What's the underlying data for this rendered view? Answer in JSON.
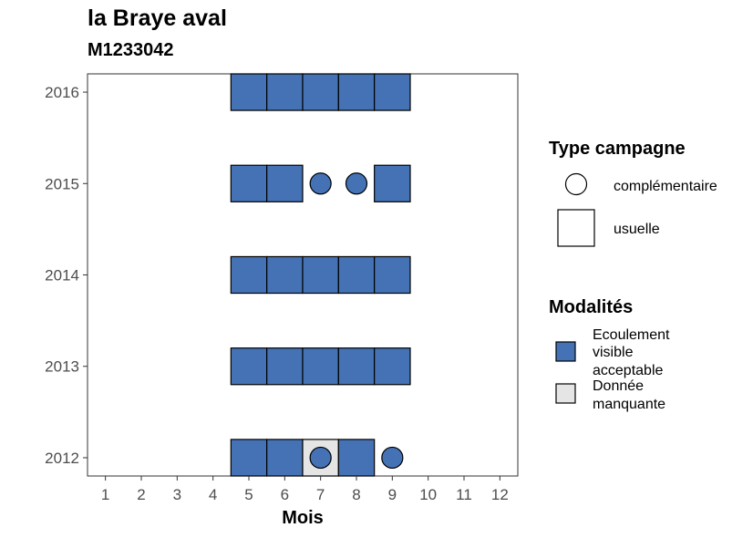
{
  "chart_data": {
    "type": "heatmap",
    "title": "la Braye aval",
    "subtitle": "M1233042",
    "xlabel": "Mois",
    "ylabel": "",
    "x_ticks": [
      "1",
      "2",
      "3",
      "4",
      "5",
      "6",
      "7",
      "8",
      "9",
      "10",
      "11",
      "12"
    ],
    "y_ticks": [
      "2012",
      "2013",
      "2014",
      "2015",
      "2016"
    ],
    "xlim": [
      0.5,
      12.5
    ],
    "ylim": [
      2011.8,
      2016.2
    ],
    "grid": false,
    "legend_position": "right",
    "colors": {
      "ecoulement_visible_acceptable": "#4472B4",
      "donnee_manquante": "#E5E5E5",
      "border": "#000000"
    },
    "legend": {
      "type_campagne": {
        "title": "Type campagne",
        "items": [
          {
            "key": "complementaire",
            "label": "complémentaire",
            "shape": "circle"
          },
          {
            "key": "usuelle",
            "label": "usuelle",
            "shape": "square"
          }
        ]
      },
      "modalites": {
        "title": "Modalités",
        "items": [
          {
            "key": "ecoulement_visible_acceptable",
            "lines": [
              "Ecoulement",
              "visible",
              "acceptable"
            ]
          },
          {
            "key": "donnee_manquante",
            "lines": [
              "Donnée",
              "manquante"
            ]
          }
        ]
      }
    },
    "cells": [
      {
        "year": 2016,
        "month": 5,
        "modalite": "ecoulement_visible_acceptable",
        "campagne": "usuelle"
      },
      {
        "year": 2016,
        "month": 6,
        "modalite": "ecoulement_visible_acceptable",
        "campagne": "usuelle"
      },
      {
        "year": 2016,
        "month": 7,
        "modalite": "ecoulement_visible_acceptable",
        "campagne": "usuelle"
      },
      {
        "year": 2016,
        "month": 8,
        "modalite": "ecoulement_visible_acceptable",
        "campagne": "usuelle"
      },
      {
        "year": 2016,
        "month": 9,
        "modalite": "ecoulement_visible_acceptable",
        "campagne": "usuelle"
      },
      {
        "year": 2015,
        "month": 5,
        "modalite": "ecoulement_visible_acceptable",
        "campagne": "usuelle"
      },
      {
        "year": 2015,
        "month": 6,
        "modalite": "ecoulement_visible_acceptable",
        "campagne": "usuelle"
      },
      {
        "year": 2015,
        "month": 7,
        "modalite": "ecoulement_visible_acceptable",
        "campagne": "complementaire"
      },
      {
        "year": 2015,
        "month": 8,
        "modalite": "ecoulement_visible_acceptable",
        "campagne": "complementaire"
      },
      {
        "year": 2015,
        "month": 9,
        "modalite": "ecoulement_visible_acceptable",
        "campagne": "usuelle"
      },
      {
        "year": 2014,
        "month": 5,
        "modalite": "ecoulement_visible_acceptable",
        "campagne": "usuelle"
      },
      {
        "year": 2014,
        "month": 6,
        "modalite": "ecoulement_visible_acceptable",
        "campagne": "usuelle"
      },
      {
        "year": 2014,
        "month": 7,
        "modalite": "ecoulement_visible_acceptable",
        "campagne": "usuelle"
      },
      {
        "year": 2014,
        "month": 8,
        "modalite": "ecoulement_visible_acceptable",
        "campagne": "usuelle"
      },
      {
        "year": 2014,
        "month": 9,
        "modalite": "ecoulement_visible_acceptable",
        "campagne": "usuelle"
      },
      {
        "year": 2013,
        "month": 5,
        "modalite": "ecoulement_visible_acceptable",
        "campagne": "usuelle"
      },
      {
        "year": 2013,
        "month": 6,
        "modalite": "ecoulement_visible_acceptable",
        "campagne": "usuelle"
      },
      {
        "year": 2013,
        "month": 7,
        "modalite": "ecoulement_visible_acceptable",
        "campagne": "usuelle"
      },
      {
        "year": 2013,
        "month": 8,
        "modalite": "ecoulement_visible_acceptable",
        "campagne": "usuelle"
      },
      {
        "year": 2013,
        "month": 9,
        "modalite": "ecoulement_visible_acceptable",
        "campagne": "usuelle"
      },
      {
        "year": 2012,
        "month": 5,
        "modalite": "ecoulement_visible_acceptable",
        "campagne": "usuelle"
      },
      {
        "year": 2012,
        "month": 6,
        "modalite": "ecoulement_visible_acceptable",
        "campagne": "usuelle"
      },
      {
        "year": 2012,
        "month": 7,
        "modalite": "donnee_manquante",
        "campagne": "usuelle"
      },
      {
        "year": 2012,
        "month": 7,
        "modalite": "ecoulement_visible_acceptable",
        "campagne": "complementaire"
      },
      {
        "year": 2012,
        "month": 8,
        "modalite": "ecoulement_visible_acceptable",
        "campagne": "usuelle"
      },
      {
        "year": 2012,
        "month": 9,
        "modalite": "ecoulement_visible_acceptable",
        "campagne": "complementaire"
      }
    ]
  }
}
